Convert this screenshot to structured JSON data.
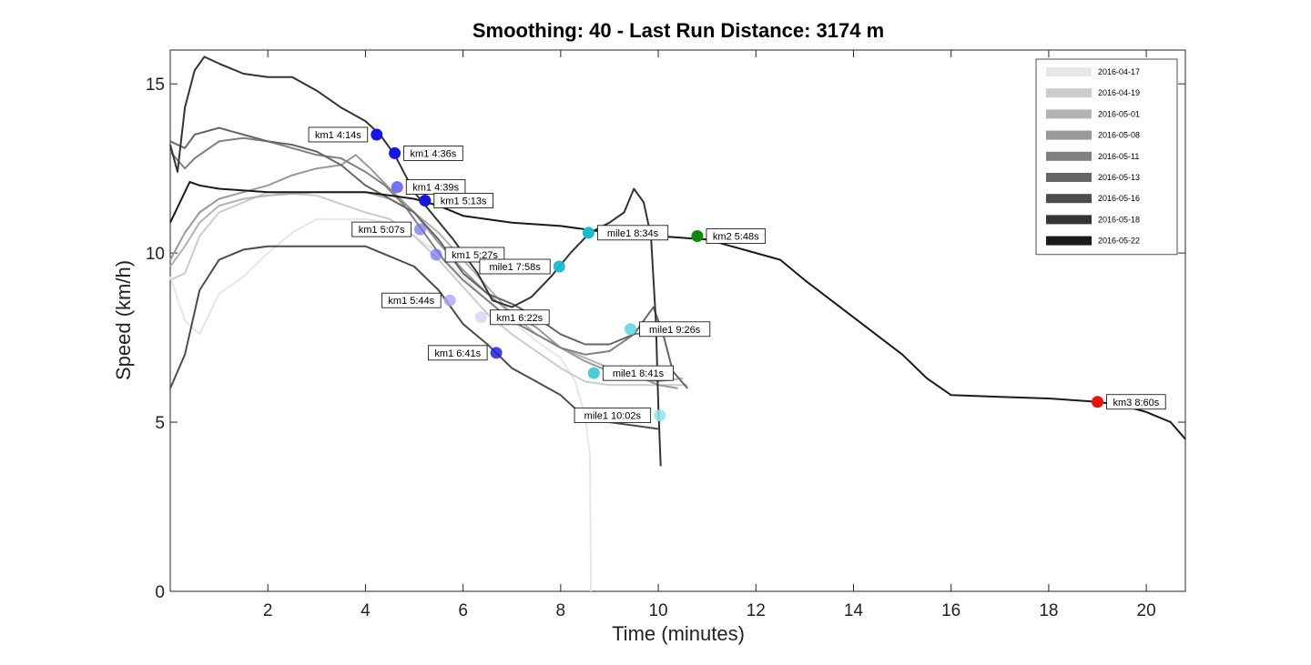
{
  "chart_data": {
    "type": "line",
    "title": "Smoothing: 40 - Last Run Distance: 3174 m",
    "xlabel": "Time (minutes)",
    "ylabel": "Speed (km/h)",
    "xlim": [
      0,
      20.8
    ],
    "ylim": [
      0,
      16
    ],
    "xticks": [
      2,
      4,
      6,
      8,
      10,
      12,
      14,
      16,
      18,
      20
    ],
    "yticks": [
      0,
      5,
      10,
      15
    ],
    "grid": false,
    "legend_position": "top-right",
    "series": [
      {
        "name": "2016-04-17",
        "color": "#e6e6e6",
        "points": [
          [
            0.0,
            9.3
          ],
          [
            0.3,
            8.0
          ],
          [
            0.6,
            7.6
          ],
          [
            1.0,
            8.8
          ],
          [
            1.5,
            9.3
          ],
          [
            2.0,
            10.0
          ],
          [
            2.5,
            10.6
          ],
          [
            3.0,
            11.0
          ],
          [
            4.0,
            11.0
          ],
          [
            4.5,
            10.9
          ],
          [
            5.0,
            10.5
          ],
          [
            5.5,
            10.0
          ],
          [
            6.0,
            9.3
          ],
          [
            6.5,
            8.6
          ],
          [
            7.0,
            8.0
          ],
          [
            7.5,
            7.4
          ],
          [
            8.0,
            6.9
          ],
          [
            8.3,
            6.2
          ],
          [
            8.5,
            5.2
          ],
          [
            8.6,
            4.0
          ],
          [
            8.62,
            0.0
          ]
        ]
      },
      {
        "name": "2016-04-19",
        "color": "#cccccc",
        "points": [
          [
            0.0,
            9.2
          ],
          [
            0.3,
            9.4
          ],
          [
            0.6,
            10.5
          ],
          [
            1.0,
            11.2
          ],
          [
            1.5,
            11.5
          ],
          [
            2.0,
            11.8
          ],
          [
            3.0,
            11.7
          ],
          [
            4.0,
            11.2
          ],
          [
            4.5,
            11.0
          ],
          [
            5.0,
            10.5
          ],
          [
            5.5,
            9.8
          ],
          [
            6.0,
            9.0
          ],
          [
            6.5,
            8.2
          ],
          [
            7.0,
            7.6
          ],
          [
            7.5,
            7.1
          ],
          [
            8.0,
            6.6
          ],
          [
            8.5,
            6.2
          ],
          [
            9.0,
            6.1
          ],
          [
            10.0,
            6.1
          ],
          [
            10.6,
            6.1
          ]
        ]
      },
      {
        "name": "2016-05-01",
        "color": "#b3b3b3",
        "points": [
          [
            0.0,
            9.6
          ],
          [
            0.3,
            10.2
          ],
          [
            0.6,
            10.9
          ],
          [
            1.0,
            11.4
          ],
          [
            1.5,
            11.6
          ],
          [
            2.0,
            11.7
          ],
          [
            3.0,
            11.8
          ],
          [
            4.0,
            11.8
          ],
          [
            4.5,
            11.6
          ],
          [
            5.0,
            11.2
          ],
          [
            5.5,
            10.6
          ],
          [
            6.0,
            9.8
          ],
          [
            6.5,
            9.0
          ],
          [
            7.0,
            8.2
          ],
          [
            7.5,
            7.6
          ],
          [
            8.0,
            7.2
          ],
          [
            8.5,
            6.9
          ],
          [
            9.0,
            6.6
          ],
          [
            9.5,
            6.3
          ],
          [
            10.0,
            6.2
          ],
          [
            10.5,
            6.3
          ]
        ]
      },
      {
        "name": "2016-05-08",
        "color": "#999999",
        "points": [
          [
            0.0,
            9.8
          ],
          [
            0.3,
            10.6
          ],
          [
            0.6,
            11.2
          ],
          [
            1.0,
            11.6
          ],
          [
            1.5,
            11.8
          ],
          [
            2.0,
            12.0
          ],
          [
            2.5,
            12.3
          ],
          [
            3.0,
            12.5
          ],
          [
            3.5,
            12.6
          ],
          [
            3.8,
            12.9
          ],
          [
            4.1,
            12.5
          ],
          [
            4.5,
            11.9
          ],
          [
            5.0,
            11.2
          ],
          [
            5.5,
            10.3
          ],
          [
            6.0,
            9.5
          ],
          [
            6.5,
            8.8
          ],
          [
            7.0,
            8.2
          ],
          [
            7.5,
            7.8
          ],
          [
            8.0,
            7.2
          ],
          [
            8.5,
            6.8
          ],
          [
            9.0,
            6.5
          ],
          [
            9.5,
            6.4
          ],
          [
            10.0,
            6.1
          ],
          [
            10.4,
            6.0
          ]
        ]
      },
      {
        "name": "2016-05-11",
        "color": "#808080",
        "points": [
          [
            0.0,
            13.0
          ],
          [
            0.3,
            12.5
          ],
          [
            0.5,
            12.8
          ],
          [
            1.0,
            13.3
          ],
          [
            1.5,
            13.4
          ],
          [
            2.0,
            13.3
          ],
          [
            2.5,
            13.1
          ],
          [
            3.0,
            12.9
          ],
          [
            3.5,
            12.8
          ],
          [
            4.0,
            12.4
          ],
          [
            4.4,
            12.0
          ],
          [
            4.8,
            11.4
          ],
          [
            5.2,
            10.6
          ],
          [
            5.6,
            9.8
          ],
          [
            6.0,
            9.2
          ],
          [
            6.5,
            8.6
          ],
          [
            7.0,
            8.0
          ],
          [
            7.5,
            7.6
          ],
          [
            8.0,
            7.2
          ],
          [
            8.5,
            7.0
          ],
          [
            9.0,
            7.1
          ],
          [
            9.5,
            7.6
          ],
          [
            10.0,
            7.7
          ]
        ]
      },
      {
        "name": "2016-05-13",
        "color": "#666666",
        "points": [
          [
            0.0,
            13.3
          ],
          [
            0.3,
            13.1
          ],
          [
            0.5,
            13.5
          ],
          [
            1.0,
            13.7
          ],
          [
            1.5,
            13.5
          ],
          [
            2.0,
            13.3
          ],
          [
            2.5,
            13.2
          ],
          [
            3.0,
            13.0
          ],
          [
            3.5,
            12.6
          ],
          [
            4.0,
            12.0
          ],
          [
            4.5,
            11.6
          ],
          [
            5.0,
            11.2
          ],
          [
            5.5,
            10.4
          ],
          [
            6.0,
            9.4
          ],
          [
            6.5,
            8.8
          ],
          [
            7.0,
            8.5
          ],
          [
            7.5,
            8.1
          ],
          [
            8.0,
            7.6
          ],
          [
            8.5,
            7.3
          ],
          [
            9.0,
            7.3
          ],
          [
            9.5,
            7.6
          ],
          [
            9.9,
            8.4
          ],
          [
            10.1,
            7.6
          ],
          [
            10.3,
            6.5
          ],
          [
            10.6,
            6.0
          ]
        ]
      },
      {
        "name": "2016-05-16",
        "color": "#4d4d4d",
        "points": [
          [
            0.0,
            6.0
          ],
          [
            0.3,
            7.0
          ],
          [
            0.6,
            8.9
          ],
          [
            1.0,
            9.8
          ],
          [
            1.5,
            10.1
          ],
          [
            2.0,
            10.2
          ],
          [
            3.0,
            10.2
          ],
          [
            4.0,
            10.2
          ],
          [
            4.5,
            9.9
          ],
          [
            5.0,
            9.6
          ],
          [
            5.5,
            8.9
          ],
          [
            6.0,
            7.9
          ],
          [
            6.5,
            7.3
          ],
          [
            7.0,
            6.6
          ],
          [
            7.5,
            6.2
          ],
          [
            8.0,
            5.8
          ],
          [
            8.3,
            5.4
          ],
          [
            8.6,
            5.1
          ],
          [
            9.0,
            5.0
          ],
          [
            9.5,
            4.9
          ],
          [
            10.0,
            4.8
          ]
        ]
      },
      {
        "name": "2016-05-18",
        "color": "#333333",
        "points": [
          [
            0.0,
            13.2
          ],
          [
            0.15,
            12.4
          ],
          [
            0.3,
            14.3
          ],
          [
            0.5,
            15.4
          ],
          [
            0.7,
            15.8
          ],
          [
            1.0,
            15.6
          ],
          [
            1.5,
            15.3
          ],
          [
            2.0,
            15.2
          ],
          [
            2.5,
            15.2
          ],
          [
            3.0,
            14.8
          ],
          [
            3.5,
            14.3
          ],
          [
            4.0,
            13.9
          ],
          [
            4.3,
            13.5
          ],
          [
            4.6,
            12.9
          ],
          [
            5.0,
            11.8
          ],
          [
            5.4,
            11.1
          ],
          [
            5.8,
            10.4
          ],
          [
            6.3,
            9.4
          ],
          [
            6.6,
            8.6
          ],
          [
            7.0,
            8.4
          ],
          [
            7.4,
            8.7
          ],
          [
            7.8,
            9.3
          ],
          [
            8.2,
            10.0
          ],
          [
            8.6,
            10.6
          ],
          [
            9.0,
            10.9
          ],
          [
            9.3,
            11.2
          ],
          [
            9.5,
            11.9
          ],
          [
            9.7,
            11.5
          ],
          [
            9.85,
            10.5
          ],
          [
            9.95,
            8.0
          ],
          [
            10.0,
            5.5
          ],
          [
            10.05,
            3.7
          ]
        ]
      },
      {
        "name": "2016-05-22",
        "color": "#1a1a1a",
        "points": [
          [
            0.0,
            10.9
          ],
          [
            0.2,
            11.5
          ],
          [
            0.4,
            12.1
          ],
          [
            0.6,
            12.0
          ],
          [
            1.0,
            11.9
          ],
          [
            2.0,
            11.8
          ],
          [
            3.0,
            11.8
          ],
          [
            4.0,
            11.8
          ],
          [
            4.5,
            11.7
          ],
          [
            5.0,
            11.6
          ],
          [
            5.5,
            11.4
          ],
          [
            6.0,
            11.1
          ],
          [
            7.0,
            10.9
          ],
          [
            8.0,
            10.8
          ],
          [
            9.0,
            10.6
          ],
          [
            10.0,
            10.5
          ],
          [
            11.0,
            10.4
          ],
          [
            12.0,
            10.0
          ],
          [
            12.5,
            9.8
          ],
          [
            13.0,
            9.2
          ],
          [
            14.0,
            8.1
          ],
          [
            15.0,
            7.0
          ],
          [
            15.5,
            6.3
          ],
          [
            16.0,
            5.8
          ],
          [
            17.0,
            5.75
          ],
          [
            18.0,
            5.7
          ],
          [
            19.0,
            5.6
          ],
          [
            19.5,
            5.5
          ],
          [
            20.0,
            5.3
          ],
          [
            20.5,
            5.0
          ],
          [
            20.8,
            4.5
          ]
        ]
      }
    ],
    "annotations": [
      {
        "x": 4.23,
        "y": 13.5,
        "label": "km1 4:14s",
        "color": "#1515e6",
        "opacity": 1.0,
        "side": "left"
      },
      {
        "x": 4.6,
        "y": 12.95,
        "label": "km1 4:36s",
        "color": "#1515e6",
        "opacity": 1.0,
        "side": "right"
      },
      {
        "x": 4.65,
        "y": 11.95,
        "label": "km1 4:39s",
        "color": "#4545ee",
        "opacity": 0.75,
        "side": "right"
      },
      {
        "x": 5.22,
        "y": 11.55,
        "label": "km1 5:13s",
        "color": "#1515e6",
        "opacity": 1.0,
        "side": "right"
      },
      {
        "x": 5.12,
        "y": 10.7,
        "label": "km1 5:07s",
        "color": "#7070ee",
        "opacity": 0.7,
        "side": "left"
      },
      {
        "x": 5.45,
        "y": 9.95,
        "label": "km1 5:27s",
        "color": "#7070ee",
        "opacity": 0.7,
        "side": "right"
      },
      {
        "x": 5.73,
        "y": 8.6,
        "label": "km1 5:44s",
        "color": "#a8a8f5",
        "opacity": 0.8,
        "side": "left"
      },
      {
        "x": 6.37,
        "y": 8.1,
        "label": "km1 6:22s",
        "color": "#d4d4fa",
        "opacity": 0.8,
        "side": "right"
      },
      {
        "x": 6.68,
        "y": 7.05,
        "label": "km1 6:41s",
        "color": "#2020e0",
        "opacity": 0.85,
        "side": "left"
      },
      {
        "x": 7.97,
        "y": 9.6,
        "label": "mile1 7:58s",
        "color": "#15bccc",
        "opacity": 0.95,
        "side": "left"
      },
      {
        "x": 8.57,
        "y": 10.6,
        "label": "mile1 8:34s",
        "color": "#15bccc",
        "opacity": 1.0,
        "side": "right"
      },
      {
        "x": 10.8,
        "y": 10.5,
        "label": "km2 5:48s",
        "color": "#0c8a0c",
        "opacity": 1.0,
        "side": "right"
      },
      {
        "x": 9.43,
        "y": 7.75,
        "label": "mile1 9:26s",
        "color": "#5fd8e0",
        "opacity": 0.9,
        "side": "right"
      },
      {
        "x": 8.68,
        "y": 6.45,
        "label": "mile1 8:41s",
        "color": "#3ac8d2",
        "opacity": 0.9,
        "side": "right"
      },
      {
        "x": 10.03,
        "y": 5.2,
        "label": "mile1 10:02s",
        "color": "#8ce4ea",
        "opacity": 0.85,
        "side": "left"
      },
      {
        "x": 19.0,
        "y": 5.6,
        "label": "km3 8:60s",
        "color": "#ee1111",
        "opacity": 1.0,
        "side": "right"
      }
    ]
  }
}
